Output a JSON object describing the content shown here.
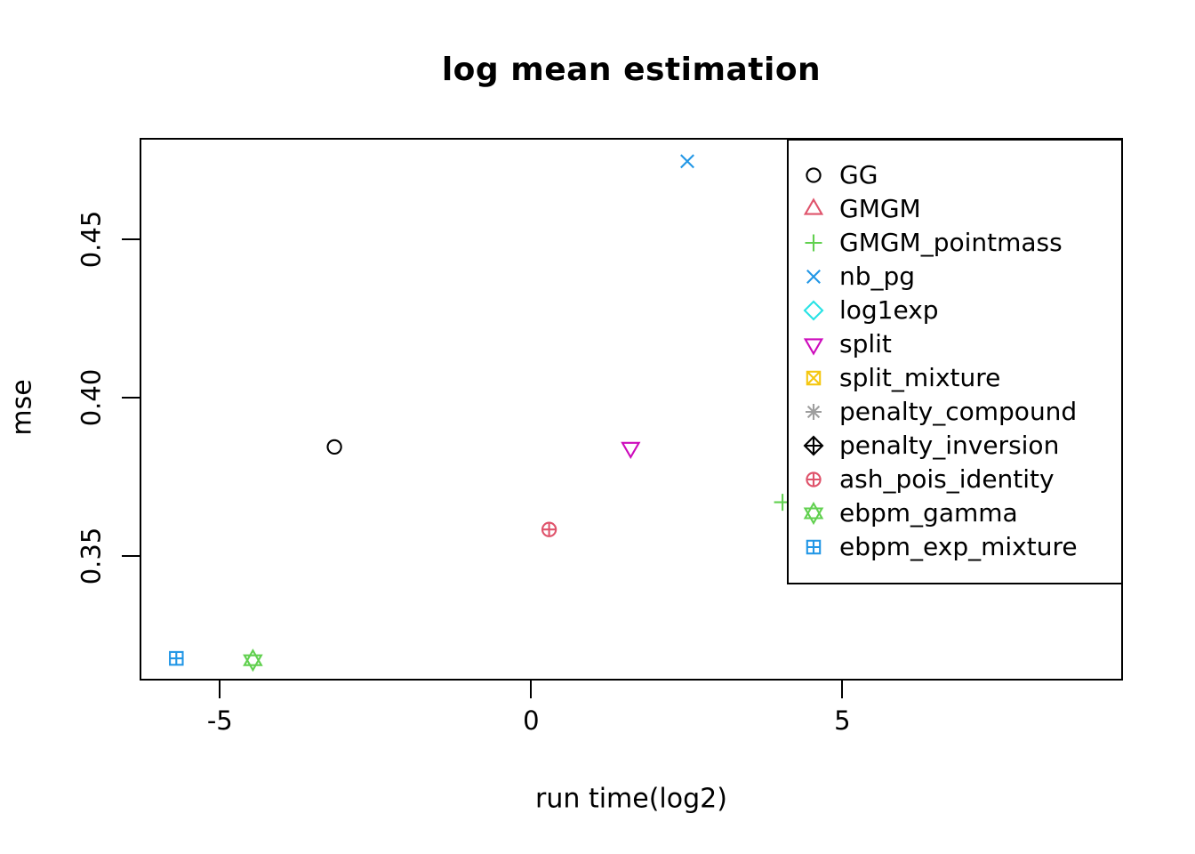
{
  "chart_data": {
    "type": "scatter",
    "title": "log mean estimation",
    "xlabel": "run time(log2)",
    "ylabel": "mse",
    "xlim": [
      -6.29,
      9.51
    ],
    "ylim": [
      0.3107,
      0.4821
    ],
    "x_ticks": {
      "values": [
        -5,
        0,
        5
      ],
      "labels": [
        "-5",
        "0",
        "5"
      ]
    },
    "y_ticks": {
      "values": [
        0.35,
        0.4,
        0.45
      ],
      "labels": [
        "0.35",
        "0.40",
        "0.45"
      ]
    },
    "grid": false,
    "legend_position": "top-right-inside",
    "axis_color": "#000000",
    "background_color": "#ffffff",
    "series": [
      {
        "name": "GG",
        "marker": "circle",
        "color": "#000000",
        "points": [
          [
            -3.16,
            0.3845
          ]
        ]
      },
      {
        "name": "GMGM",
        "marker": "triangle-up",
        "color": "#DF536B",
        "points": []
      },
      {
        "name": "GMGM_pointmass",
        "marker": "plus",
        "color": "#61D04F",
        "points": [
          [
            4.04,
            0.367
          ]
        ]
      },
      {
        "name": "nb_pg",
        "marker": "x",
        "color": "#2297E6",
        "points": [
          [
            2.51,
            0.4747
          ]
        ]
      },
      {
        "name": "log1exp",
        "marker": "diamond",
        "color": "#28E2E5",
        "points": []
      },
      {
        "name": "split",
        "marker": "triangle-down",
        "color": "#CD0BBC",
        "points": [
          [
            1.6,
            0.3842
          ]
        ]
      },
      {
        "name": "split_mixture",
        "marker": "square-x",
        "color": "#F5C710",
        "points": []
      },
      {
        "name": "penalty_compound",
        "marker": "asterisk",
        "color": "#9E9E9E",
        "points": []
      },
      {
        "name": "penalty_inversion",
        "marker": "diamond-plus",
        "color": "#000000",
        "points": []
      },
      {
        "name": "ash_pois_identity",
        "marker": "circle-plus",
        "color": "#DF536B",
        "points": [
          [
            0.29,
            0.3584
          ]
        ]
      },
      {
        "name": "ebpm_gamma",
        "marker": "hexagram",
        "color": "#61D04F",
        "points": [
          [
            -4.47,
            0.3171
          ]
        ]
      },
      {
        "name": "ebpm_exp_mixture",
        "marker": "square-plus",
        "color": "#2297E6",
        "points": [
          [
            -5.7,
            0.3177
          ]
        ]
      }
    ]
  }
}
